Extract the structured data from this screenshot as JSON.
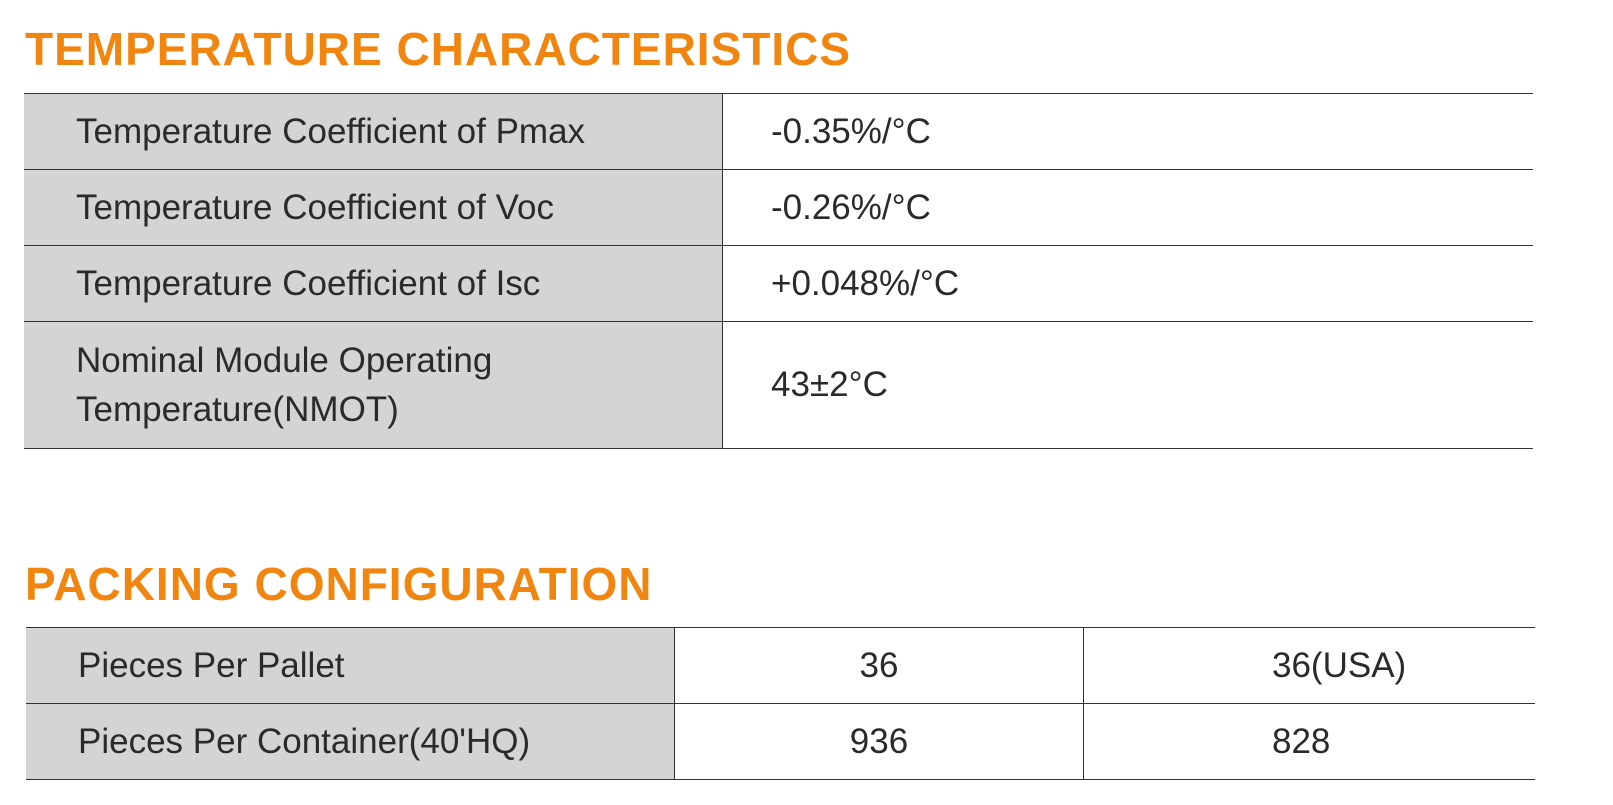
{
  "sections": [
    {
      "title": "TEMPERATURE CHARACTERISTICS",
      "rows": [
        [
          "Temperature Coefficient of Pmax",
          "-0.35%/°C"
        ],
        [
          "Temperature Coefficient of Voc",
          "-0.26%/°C"
        ],
        [
          "Temperature Coefficient of Isc",
          "+0.048%/°C"
        ],
        [
          "Nominal Module Operating Temperature(NMOT)",
          "43±2°C"
        ]
      ]
    },
    {
      "title": "PACKING CONFIGURATION",
      "rows": [
        [
          "Pieces Per Pallet",
          "36",
          "36(USA)"
        ],
        [
          "Pieces Per Container(40'HQ)",
          "936",
          "828"
        ]
      ]
    }
  ]
}
